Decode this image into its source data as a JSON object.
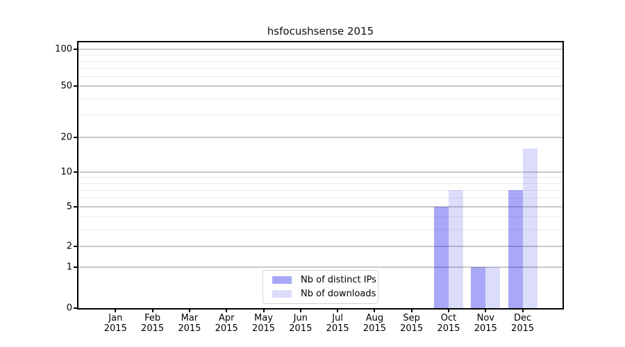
{
  "title": "hsfocushsense 2015",
  "chart_data": {
    "type": "bar",
    "title": "hsfocushsense 2015",
    "categories": [
      "Jan",
      "Feb",
      "Mar",
      "Apr",
      "May",
      "Jun",
      "Jul",
      "Aug",
      "Sep",
      "Oct",
      "Nov",
      "Dec"
    ],
    "category_year": "2015",
    "series": [
      {
        "name": "Nb of distinct IPs",
        "color": "rgba(20,20,230,0.37)",
        "values": [
          0,
          0,
          0,
          0,
          0,
          0,
          0,
          0,
          0,
          5,
          1,
          7
        ]
      },
      {
        "name": "Nb of downloads",
        "color": "rgba(20,20,230,0.15)",
        "values": [
          0,
          0,
          0,
          0,
          0,
          0,
          0,
          0,
          0,
          7,
          1,
          16
        ]
      }
    ],
    "xlabel": "",
    "ylabel": "",
    "ylim": [
      0,
      100
    ],
    "yscale": "symlog",
    "y_major_ticks": [
      0,
      1,
      2,
      5,
      10,
      20,
      50,
      100
    ],
    "y_minor_gridlines": [
      3,
      4,
      6,
      7,
      8,
      9,
      30,
      40,
      60,
      70,
      80,
      90
    ],
    "grid": "horizontal",
    "legend_position": "lower center"
  },
  "colors": {
    "bar_distinct_ips": "rgba(20,20,230,0.37)",
    "bar_downloads": "rgba(20,20,230,0.15)",
    "grid_major": "#c9c9c9",
    "grid_minor": "#ebebeb",
    "axis": "#000000",
    "background": "#ffffff"
  }
}
